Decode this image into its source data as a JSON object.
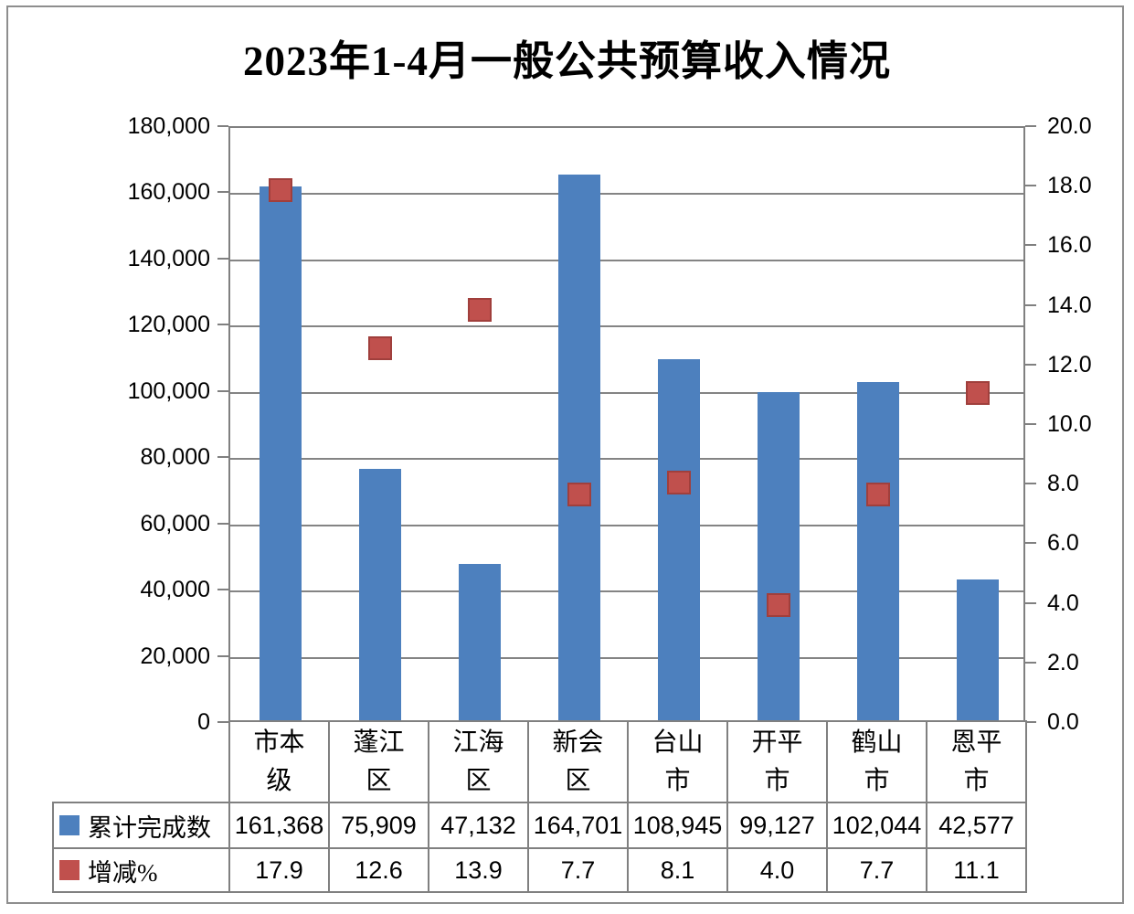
{
  "chart_data": {
    "type": "bar",
    "title": "2023年1-4月一般公共预算收入情况",
    "categories": [
      "市本级",
      "蓬江区",
      "江海区",
      "新会区",
      "台山市",
      "开平市",
      "鹤山市",
      "恩平市"
    ],
    "series": [
      {
        "name": "累计完成数",
        "chart": "column",
        "axis": "left",
        "color": "#4d80be",
        "format": "comma",
        "values": [
          161368,
          75909,
          47132,
          164701,
          108945,
          99127,
          102044,
          42577
        ]
      },
      {
        "name": "增减%",
        "chart": "scatter-square",
        "axis": "right",
        "color": "#c0504d",
        "format": "decimal1",
        "values": [
          17.9,
          12.6,
          13.9,
          7.7,
          8.1,
          4.0,
          7.7,
          11.1
        ]
      }
    ],
    "left_axis": {
      "min": 0,
      "max": 180000,
      "step": 20000,
      "tick_labels": [
        "0",
        "20,000",
        "40,000",
        "60,000",
        "80,000",
        "100,000",
        "120,000",
        "140,000",
        "160,000",
        "180,000"
      ]
    },
    "right_axis": {
      "min": 0,
      "max": 20,
      "step": 2,
      "tick_labels": [
        "0.0",
        "2.0",
        "4.0",
        "6.0",
        "8.0",
        "10.0",
        "12.0",
        "14.0",
        "16.0",
        "18.0",
        "20.0"
      ]
    },
    "grid": true,
    "legend_position": "data-table-left"
  },
  "colors": {
    "bar": "#4d80be",
    "marker_fill": "#c0504d",
    "marker_border": "#a03f3c",
    "gridline": "#848484",
    "plot_border": "#808080",
    "outer_border": "#8e8e8e",
    "text": "#000000",
    "background": "#ffffff"
  }
}
